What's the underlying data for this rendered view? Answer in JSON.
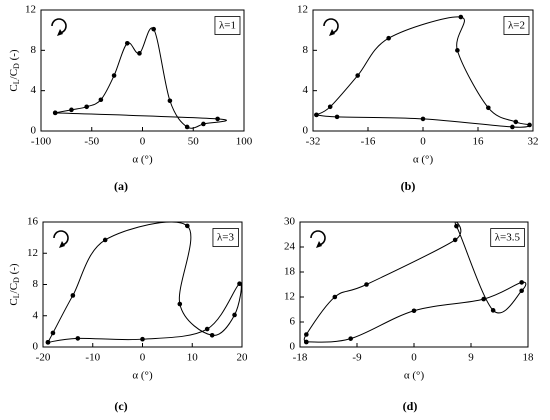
{
  "chart_data": [
    {
      "type": "line",
      "label": "(a)",
      "annotation": "λ=1",
      "xlabel": "α (°)",
      "ylabel": [
        "C",
        "L",
        "/C",
        "D",
        " (-)"
      ],
      "x": [
        -86,
        -70,
        -55,
        -41,
        -28,
        -15,
        -3,
        11,
        27,
        44,
        60,
        74,
        -86
      ],
      "series": [
        {
          "color": "#000000",
          "values": [
            1.8,
            2.1,
            2.4,
            3.1,
            5.5,
            8.7,
            7.7,
            10.1,
            3.0,
            0.4,
            0.7,
            1.2,
            1.8
          ]
        }
      ],
      "xlim": [
        -100,
        100
      ],
      "xticks": [
        -100,
        -50,
        0,
        50,
        100
      ],
      "ylim": [
        0,
        12
      ],
      "yticks": [
        0,
        4,
        8,
        12
      ]
    },
    {
      "type": "line",
      "label": "(b)",
      "annotation": "λ=2",
      "xlabel": "α (°)",
      "x": [
        -31,
        -27,
        -19,
        -10,
        11,
        10,
        19,
        27,
        31,
        26,
        0,
        -25,
        -31
      ],
      "series": [
        {
          "color": "#000000",
          "values": [
            1.6,
            2.4,
            5.5,
            9.2,
            11.3,
            8.0,
            2.3,
            0.9,
            0.6,
            0.4,
            1.2,
            1.4,
            1.6
          ]
        }
      ],
      "xlim": [
        -32,
        32
      ],
      "xticks": [
        -32,
        -16,
        0,
        16,
        32
      ],
      "ylim": [
        0,
        12
      ],
      "yticks": [
        0,
        4,
        8,
        12
      ]
    },
    {
      "type": "line",
      "label": "(c)",
      "annotation": "λ=3",
      "xlabel": "α (°)",
      "ylabel": [
        "C",
        "L",
        "/C",
        "D",
        " (-)"
      ],
      "x": [
        -19,
        -18,
        -14,
        -7.5,
        9,
        7.5,
        14,
        18.5,
        19.5,
        13,
        0,
        -13,
        -19
      ],
      "series": [
        {
          "color": "#000000",
          "values": [
            0.6,
            1.8,
            6.6,
            13.7,
            15.5,
            5.5,
            1.5,
            4.1,
            8.1,
            2.3,
            1.0,
            1.1,
            0.6
          ]
        }
      ],
      "xlim": [
        -20,
        20
      ],
      "xticks": [
        -20,
        -10,
        0,
        10,
        20
      ],
      "ylim": [
        0,
        16
      ],
      "yticks": [
        0,
        4,
        8,
        12,
        16
      ]
    },
    {
      "type": "line",
      "label": "(d)",
      "annotation": "λ=3.5",
      "xlabel": "α (°)",
      "x": [
        -17,
        -17,
        -12.5,
        -7.5,
        6.5,
        6.7,
        12.5,
        17,
        17,
        11,
        0,
        -10,
        -17
      ],
      "series": [
        {
          "color": "#000000",
          "values": [
            1.2,
            3.0,
            12.0,
            15.0,
            25.7,
            29.0,
            8.8,
            13.5,
            15.5,
            11.5,
            8.7,
            2.0,
            1.2
          ]
        }
      ],
      "xlim": [
        -18,
        18
      ],
      "xticks": [
        -18,
        -9,
        0,
        9,
        18
      ],
      "ylim": [
        0,
        30
      ],
      "yticks": [
        0,
        6,
        12,
        18,
        24,
        30
      ]
    }
  ]
}
